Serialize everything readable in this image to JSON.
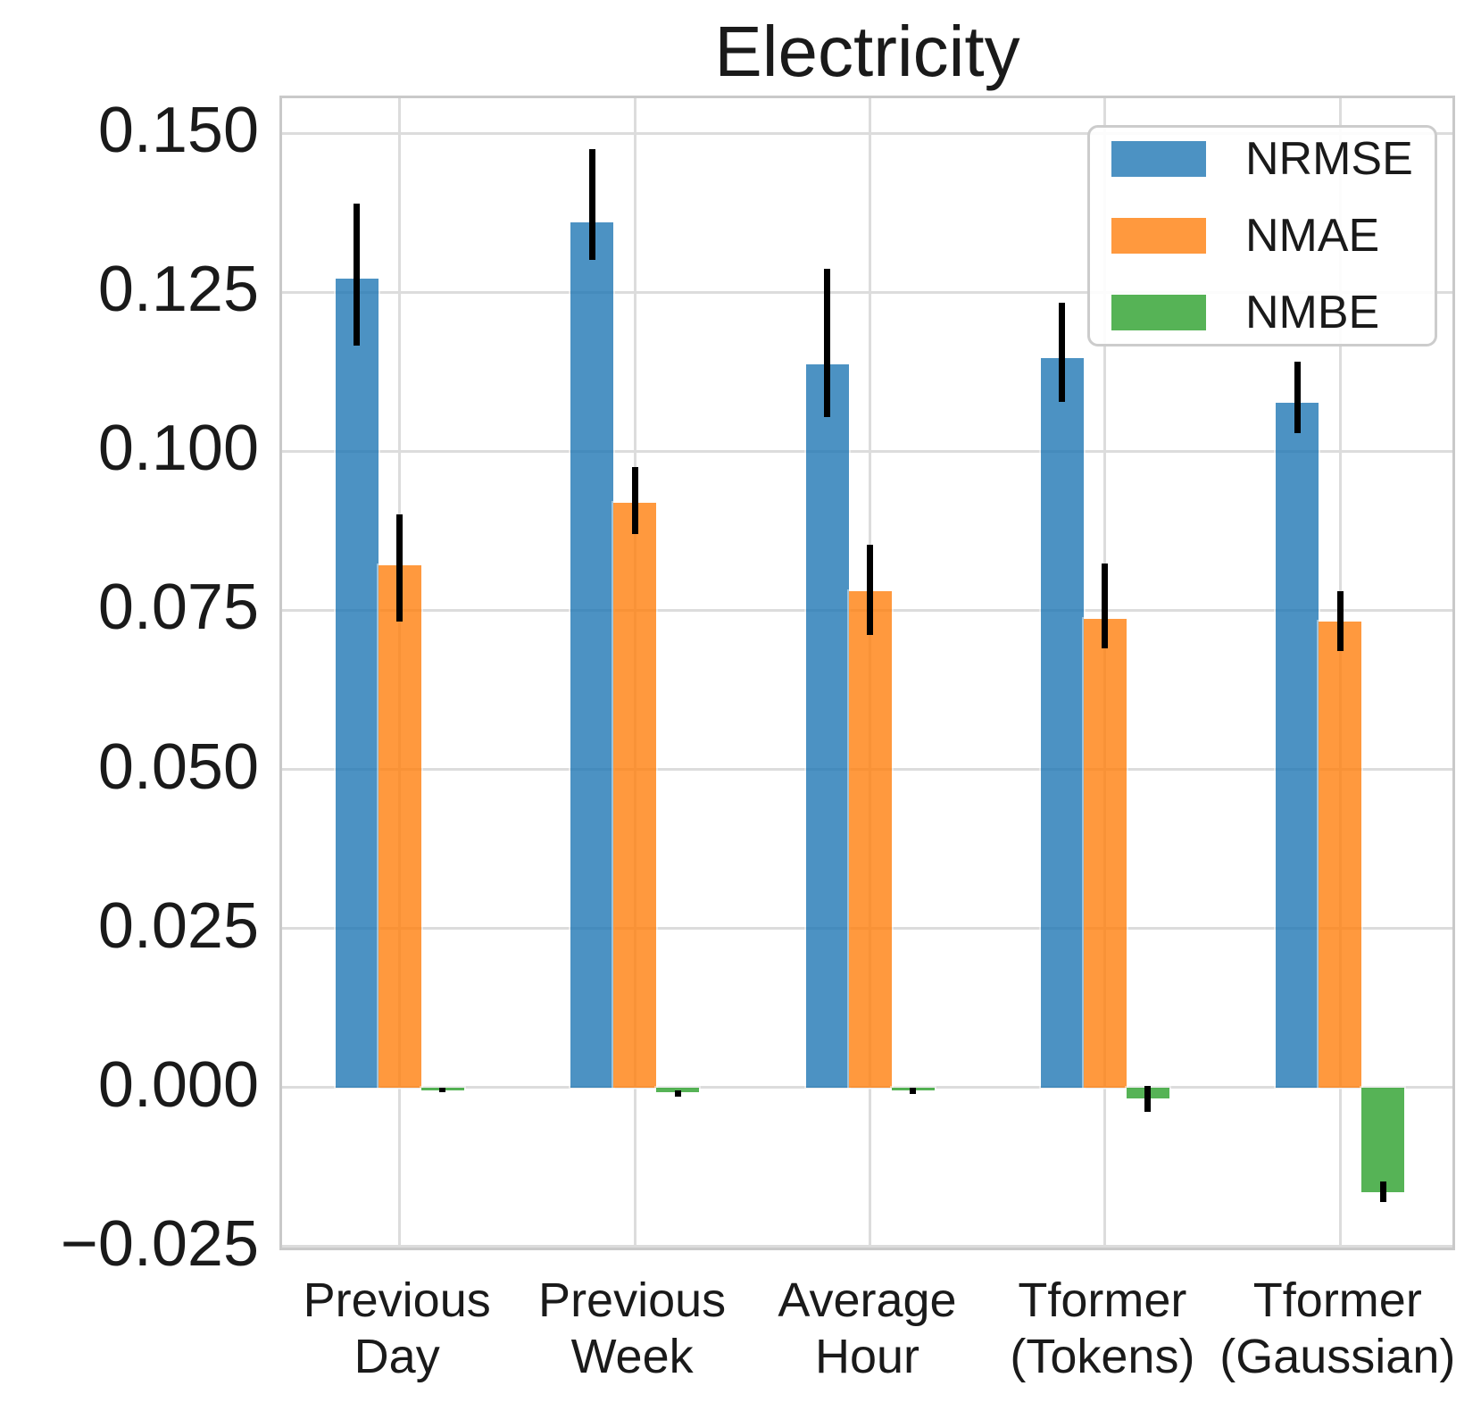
{
  "chart_data": {
    "type": "bar",
    "title": "Electricity",
    "xlabel": "",
    "ylabel": "",
    "grid": true,
    "legend_position": "upper right",
    "ylim": [
      -0.026,
      0.1555
    ],
    "categories": [
      [
        "Previous",
        "Day"
      ],
      [
        "Previous",
        "Week"
      ],
      [
        "Average",
        "Hour"
      ],
      [
        "Tformer",
        "(Tokens)"
      ],
      [
        "Tformer",
        "(Gaussian)"
      ]
    ],
    "yticks": {
      "values": [
        -0.025,
        0.0,
        0.025,
        0.05,
        0.075,
        0.1,
        0.125,
        0.15
      ],
      "labels": [
        "−0.025",
        "0.000",
        "0.025",
        "0.050",
        "0.075",
        "0.100",
        "0.125",
        "0.150"
      ]
    },
    "series": [
      {
        "name": "NRMSE",
        "color": "#1f77b4",
        "alpha": 0.8,
        "values": [
          0.1271,
          0.136,
          0.1136,
          0.1146,
          0.1076
        ],
        "err_low": [
          0.1166,
          0.1301,
          0.1054,
          0.1078,
          0.1029
        ],
        "err_high": [
          0.1389,
          0.1475,
          0.1287,
          0.1234,
          0.1141
        ]
      },
      {
        "name": "NMAE",
        "color": "#ff7f0e",
        "alpha": 0.8,
        "values": [
          0.0821,
          0.0919,
          0.078,
          0.0737,
          0.0732
        ],
        "err_low": [
          0.0733,
          0.087,
          0.0712,
          0.069,
          0.0686
        ],
        "err_high": [
          0.0901,
          0.0975,
          0.0853,
          0.0823,
          0.078
        ]
      },
      {
        "name": "NMBE",
        "color": "#2ca02c",
        "alpha": 0.8,
        "values": [
          -0.0004,
          -0.0008,
          -0.0005,
          -0.0017,
          -0.0165
        ],
        "err_low": [
          -0.0008,
          -0.0014,
          -0.001,
          -0.0038,
          -0.018
        ],
        "err_high": [
          -0.0001,
          -0.0004,
          -0.0001,
          0.0003,
          -0.0148
        ]
      }
    ],
    "style": {
      "grid_color": "#dcdcdc",
      "spine_color": "#c9c9c9",
      "error_bar_color": "#000000",
      "text_color": "#1a1a1a",
      "background": "#ffffff"
    }
  }
}
